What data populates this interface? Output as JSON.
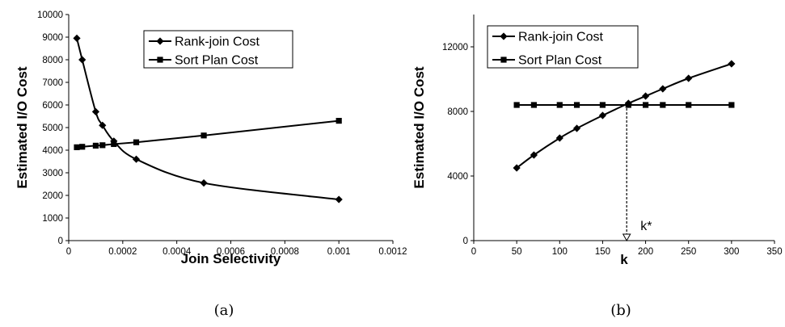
{
  "chart_data": [
    {
      "type": "line",
      "caption": "(a)",
      "xlabel": "Join Selectivity",
      "ylabel": "Estimated I/O Cost",
      "xlim": [
        0,
        0.0012
      ],
      "ylim": [
        0,
        10000
      ],
      "xticks": [
        0,
        0.0002,
        0.0004,
        0.0006,
        0.0008,
        0.001,
        0.0012
      ],
      "xtick_labels": [
        "0",
        "0.0002",
        "0.0004",
        "0.0006",
        "0.0008",
        "0.001",
        "0.0012"
      ],
      "yticks": [
        0,
        1000,
        2000,
        3000,
        4000,
        5000,
        6000,
        7000,
        8000,
        9000,
        10000
      ],
      "ytick_labels": [
        "0",
        "1000",
        "2000",
        "3000",
        "4000",
        "5000",
        "6000",
        "7000",
        "8000",
        "9000",
        "10000"
      ],
      "grid": false,
      "legend_position": "top-right",
      "series": [
        {
          "name": "Rank-join Cost",
          "marker": "diamond",
          "x": [
            3e-05,
            5e-05,
            0.0001,
            0.000125,
            0.000167,
            0.00025,
            0.0005,
            0.001
          ],
          "y": [
            8950,
            8000,
            5700,
            5100,
            4400,
            3600,
            2550,
            1820
          ]
        },
        {
          "name": "Sort Plan Cost",
          "marker": "square",
          "x": [
            3e-05,
            5e-05,
            0.0001,
            0.000125,
            0.000167,
            0.00025,
            0.0005,
            0.001
          ],
          "y": [
            4130,
            4150,
            4200,
            4220,
            4270,
            4350,
            4650,
            5300
          ]
        }
      ]
    },
    {
      "type": "line",
      "caption": "(b)",
      "xlabel": "k",
      "ylabel": "Estimated I/O Cost",
      "xlim": [
        0,
        350
      ],
      "ylim": [
        0,
        14000
      ],
      "xticks": [
        0,
        50,
        100,
        150,
        200,
        250,
        300,
        350
      ],
      "xtick_labels": [
        "0",
        "50",
        "100",
        "150",
        "200",
        "250",
        "300",
        "350"
      ],
      "yticks": [
        0,
        4000,
        8000,
        12000
      ],
      "ytick_labels": [
        "0",
        "4000",
        "8000",
        "12000"
      ],
      "grid": false,
      "legend_position": "top-left",
      "series": [
        {
          "name": "Rank-join Cost",
          "marker": "diamond",
          "x": [
            50,
            70,
            100,
            120,
            150,
            180,
            200,
            220,
            250,
            300
          ],
          "y": [
            4500,
            5300,
            6350,
            6950,
            7750,
            8500,
            8950,
            9400,
            10050,
            10950
          ]
        },
        {
          "name": "Sort Plan Cost",
          "marker": "square",
          "x": [
            50,
            70,
            100,
            120,
            150,
            180,
            200,
            220,
            250,
            300
          ],
          "y": [
            8400,
            8400,
            8400,
            8400,
            8400,
            8400,
            8400,
            8400,
            8400,
            8400
          ]
        }
      ],
      "annotations": [
        {
          "text": "k*",
          "x": 178,
          "y": 8450
        }
      ]
    }
  ]
}
